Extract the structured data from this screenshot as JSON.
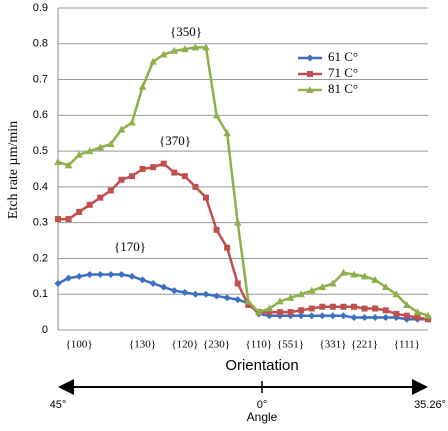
{
  "chart_data": {
    "type": "line",
    "ylabel": "Etch rate µm/min",
    "xlabel": "Orientation",
    "categories": [
      null,
      null,
      "{100}",
      null,
      null,
      null,
      null,
      null,
      "{130}",
      null,
      null,
      null,
      "{120}",
      null,
      null,
      "{230}",
      null,
      null,
      null,
      "{110}",
      null,
      null,
      "{551}",
      null,
      null,
      null,
      "{331}",
      null,
      null,
      "{221}",
      null,
      null,
      null,
      "{111}",
      null,
      null
    ],
    "ylim": [
      0,
      0.9
    ],
    "yticks": [
      0,
      0.1,
      0.2,
      0.3,
      0.4,
      0.5,
      0.6,
      0.7,
      0.8,
      0.9
    ],
    "grid": true,
    "series": [
      {
        "name": "61 C°",
        "color": "#3a6fc4",
        "marker": "diamond",
        "values": [
          0.13,
          0.145,
          0.15,
          0.155,
          0.155,
          0.155,
          0.155,
          0.15,
          0.14,
          0.13,
          0.12,
          0.11,
          0.105,
          0.1,
          0.1,
          0.095,
          0.09,
          0.085,
          0.075,
          0.045,
          0.04,
          0.04,
          0.04,
          0.04,
          0.04,
          0.04,
          0.04,
          0.04,
          0.035,
          0.035,
          0.035,
          0.035,
          0.035,
          0.03,
          0.03,
          0.03
        ]
      },
      {
        "name": "71 C°",
        "color": "#c0504d",
        "marker": "square",
        "values": [
          0.31,
          0.31,
          0.33,
          0.35,
          0.37,
          0.39,
          0.42,
          0.43,
          0.45,
          0.455,
          0.465,
          0.44,
          0.43,
          0.4,
          0.37,
          0.28,
          0.23,
          0.13,
          0.07,
          0.05,
          0.05,
          0.05,
          0.05,
          0.055,
          0.06,
          0.065,
          0.065,
          0.065,
          0.065,
          0.06,
          0.06,
          0.055,
          0.045,
          0.04,
          0.035,
          0.03
        ]
      },
      {
        "name": "81 C°",
        "color": "#8db04a",
        "marker": "triangle",
        "values": [
          0.47,
          0.46,
          0.49,
          0.5,
          0.51,
          0.52,
          0.56,
          0.58,
          0.68,
          0.75,
          0.77,
          0.78,
          0.785,
          0.79,
          0.79,
          0.6,
          0.55,
          0.3,
          0.08,
          0.05,
          0.06,
          0.08,
          0.09,
          0.1,
          0.11,
          0.12,
          0.13,
          0.16,
          0.155,
          0.15,
          0.14,
          0.12,
          0.1,
          0.07,
          0.05,
          0.04
        ]
      }
    ],
    "annotations": [
      "{350}",
      "{370}",
      "{170}"
    ],
    "angle_axis": {
      "label": "Angle",
      "ticks": [
        "45°",
        "0°",
        "35.26°"
      ]
    }
  }
}
